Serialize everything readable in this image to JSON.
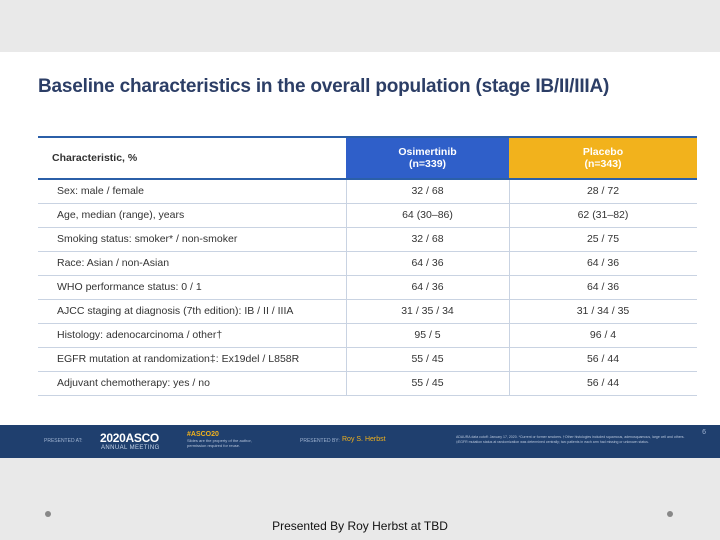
{
  "slide": {
    "title": "Baseline characteristics in the overall population (stage IB/II/IIIA)",
    "page_number": "6"
  },
  "table": {
    "header": {
      "characteristic": "Characteristic, %",
      "osimertinib_name": "Osimertinib",
      "osimertinib_n": "(n=339)",
      "placebo_name": "Placebo",
      "placebo_n": "(n=343)"
    },
    "rows": [
      {
        "label": "Sex: male / female",
        "osimertinib": "32 / 68",
        "placebo": "28 / 72"
      },
      {
        "label": "Age, median (range), years",
        "osimertinib": "64 (30–86)",
        "placebo": "62 (31–82)"
      },
      {
        "label": "Smoking status: smoker* / non-smoker",
        "osimertinib": "32 / 68",
        "placebo": "25 / 75"
      },
      {
        "label": "Race: Asian / non-Asian",
        "osimertinib": "64 / 36",
        "placebo": "64 / 36"
      },
      {
        "label": "WHO performance status: 0 / 1",
        "osimertinib": "64 / 36",
        "placebo": "64 / 36"
      },
      {
        "label": "AJCC staging at diagnosis (7th edition): IB / II / IIIA",
        "osimertinib": "31 / 35 / 34",
        "placebo": "31 / 34 / 35"
      },
      {
        "label": "Histology: adenocarcinoma / other†",
        "osimertinib": "95 / 5",
        "placebo": "96 / 4"
      },
      {
        "label": "EGFR mutation at randomization‡: Ex19del / L858R",
        "osimertinib": "55 / 45",
        "placebo": "56 / 44"
      },
      {
        "label": "Adjuvant chemotherapy: yes / no",
        "osimertinib": "55 / 45",
        "placebo": "56 / 44"
      }
    ]
  },
  "footer": {
    "presented_at": "PRESENTED AT:",
    "logo_main": "2020ASCO",
    "logo_sub": "ANNUAL MEETING",
    "hashtag": "#ASCO20",
    "hashtag_sub1": "Slides are the property of the author,",
    "hashtag_sub2": "permission required for reuse.",
    "presented_by_label": "PRESENTED BY:",
    "presenter": "Roy S. Herbst",
    "note1": "ADAURA data cutoff: January 17, 2020. *Current or former smokers. †Other histologies included squamous, adenosquamous, large cell and others.",
    "note2": "‡EGFR mutation status at randomization was determined centrally; two patients in each arm had missing or unknown status."
  },
  "caption": "Presented By Roy Herbst at TBD",
  "colors": {
    "osimertinib_header": "#2f5fc9",
    "placebo_header": "#f2b21c",
    "title": "#2c3e66",
    "rule": "#2b5fa8",
    "footer_bg": "#1f3f6e"
  }
}
